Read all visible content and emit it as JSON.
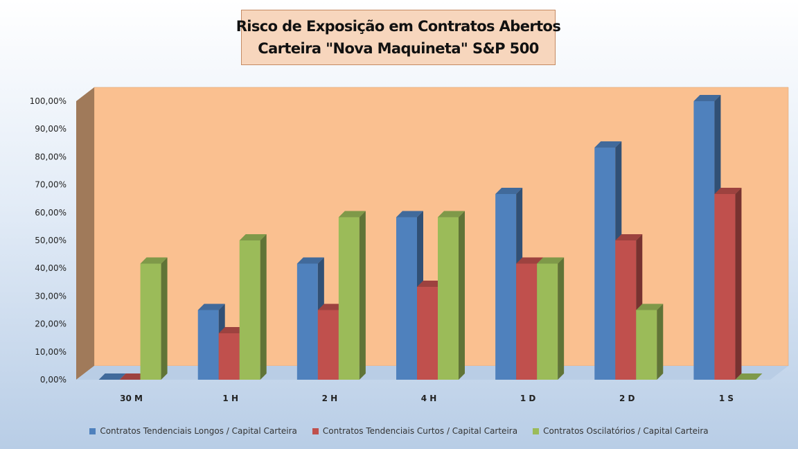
{
  "chart_data": {
    "type": "bar",
    "title_line1": "Risco de Exposição em Contratos Abertos",
    "title_line2": "Carteira \"Nova Maquineta\" S&P 500",
    "categories": [
      "30 M",
      "1 H",
      "2 H",
      "4 H",
      "1 D",
      "2 D",
      "1 S"
    ],
    "series": [
      {
        "name": "Contratos Tendenciais Longos / Capital Carteira",
        "color": "#4f81bd",
        "values": [
          0,
          25,
          41.67,
          58.33,
          66.67,
          83.33,
          100
        ]
      },
      {
        "name": "Contratos Tendenciais Curtos / Capital Carteira",
        "color": "#c0504d",
        "values": [
          0,
          16.67,
          25,
          33.33,
          41.67,
          50,
          66.67
        ]
      },
      {
        "name": "Contratos Oscilatórios / Capital Carteira",
        "color": "#9bbb59",
        "values": [
          41.67,
          50,
          58.33,
          58.33,
          41.67,
          25,
          0
        ]
      }
    ],
    "yticks": [
      "0,00%",
      "10,00%",
      "20,00%",
      "30,00%",
      "40,00%",
      "50,00%",
      "60,00%",
      "70,00%",
      "80,00%",
      "90,00%",
      "100,00%"
    ],
    "ylim": [
      0,
      100
    ],
    "grid": false,
    "legend": "bottom",
    "plot_background": "#fac090"
  }
}
